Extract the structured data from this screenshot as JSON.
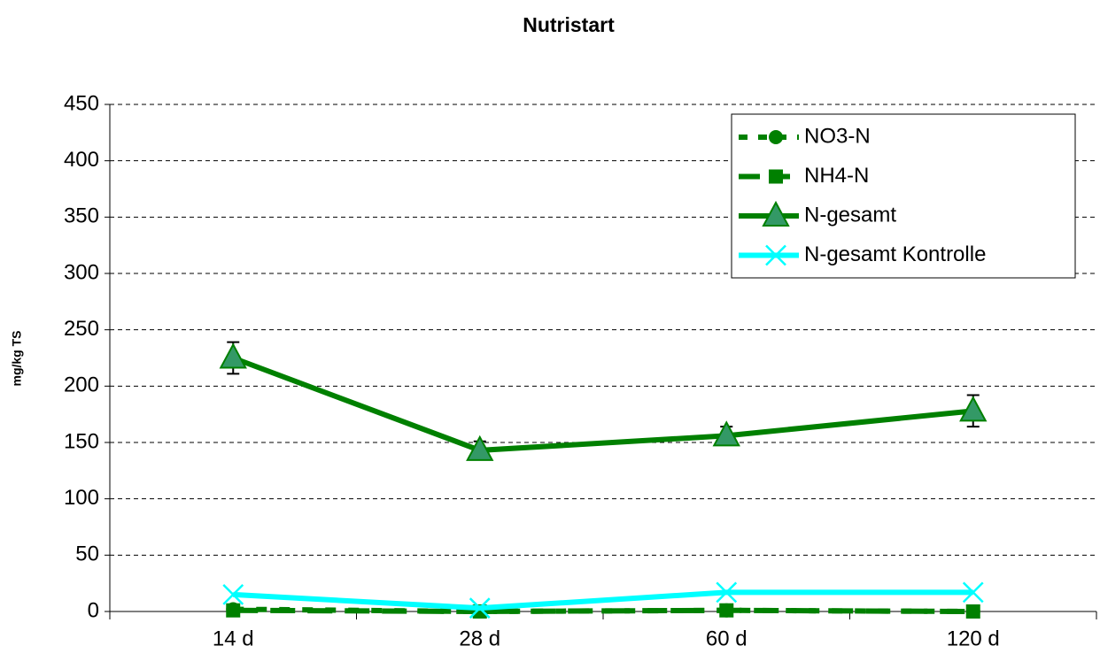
{
  "chart_data": {
    "type": "line",
    "title": "Nutristart",
    "y_label": "mg/kg TS",
    "categories": [
      "14 d",
      "28 d",
      "60 d",
      "120 d"
    ],
    "series": [
      {
        "name": "NO3-N",
        "color": "#008000",
        "dash": "dashed",
        "marker": "circle",
        "values": [
          2,
          0,
          1,
          0
        ]
      },
      {
        "name": "NH4-N",
        "color": "#008000",
        "dash": "longdash",
        "marker": "square",
        "values": [
          1,
          0,
          1,
          0
        ]
      },
      {
        "name": "N-gesamt",
        "color": "#008000",
        "dash": "solid",
        "marker": "triangle",
        "values": [
          225,
          143,
          156,
          178
        ],
        "errors": [
          14,
          8,
          8,
          14
        ]
      },
      {
        "name": "N-gesamt Kontrolle",
        "color": "#00ffff",
        "dash": "solid",
        "marker": "x",
        "values": [
          15,
          3,
          17,
          17
        ]
      }
    ],
    "ylim": [
      0,
      450
    ],
    "yticks": [
      0,
      50,
      100,
      150,
      200,
      250,
      300,
      350,
      400,
      450
    ],
    "grid": true,
    "legend": "upper right"
  }
}
